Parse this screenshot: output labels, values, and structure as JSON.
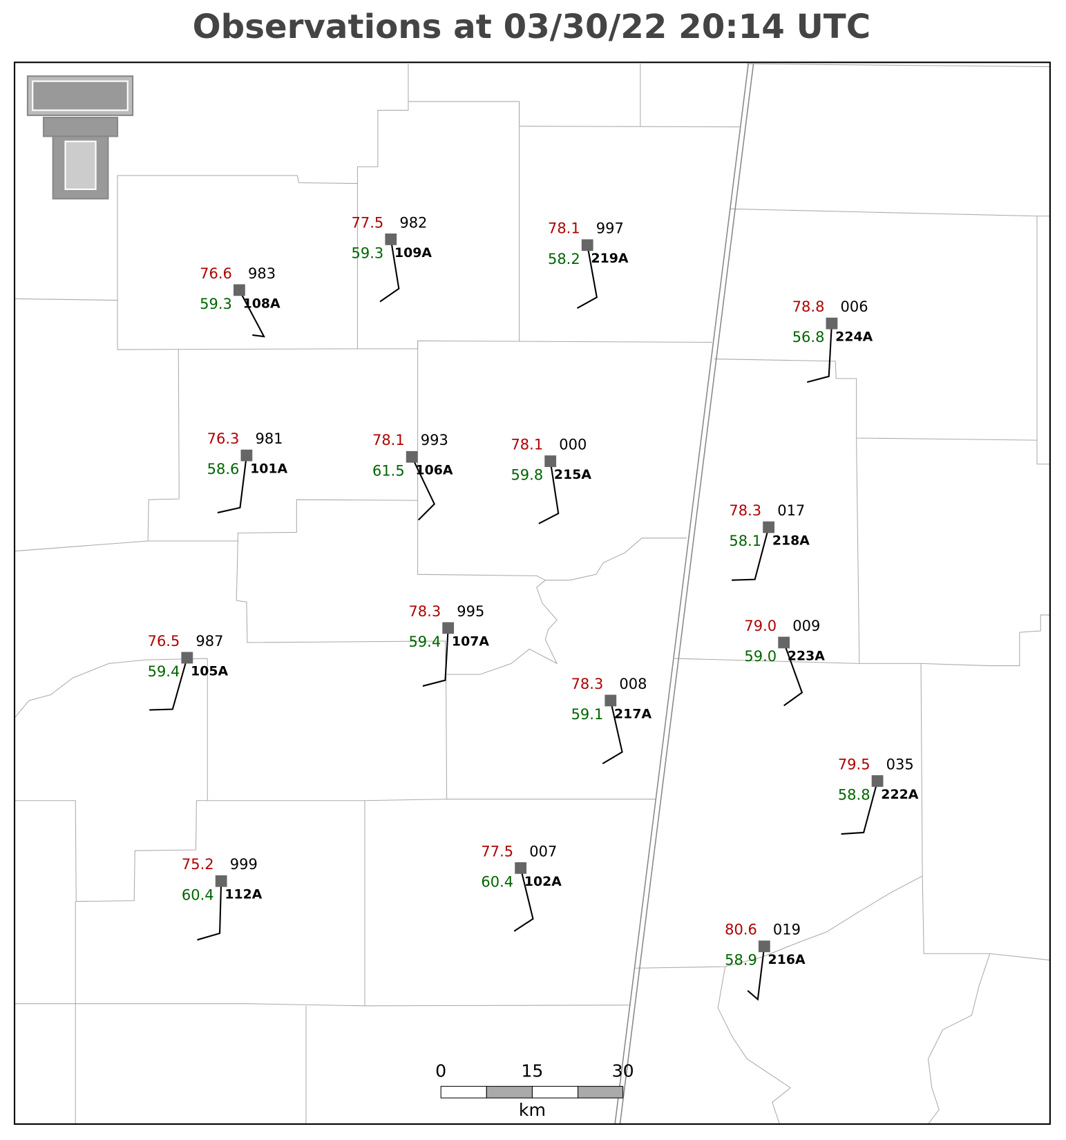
{
  "title": "Observations at 03/30/22 20:14 UTC",
  "stations": [
    {
      "id": "108A",
      "temperature": "76.6",
      "dewpoint": "59.3",
      "pressure": "983"
    },
    {
      "id": "109A",
      "temperature": "77.5",
      "dewpoint": "59.3",
      "pressure": "982"
    },
    {
      "id": "219A",
      "temperature": "78.1",
      "dewpoint": "58.2",
      "pressure": "997"
    },
    {
      "id": "224A",
      "temperature": "78.8",
      "dewpoint": "56.8",
      "pressure": "006"
    },
    {
      "id": "101A",
      "temperature": "76.3",
      "dewpoint": "58.6",
      "pressure": "981"
    },
    {
      "id": "106A",
      "temperature": "78.1",
      "dewpoint": "61.5",
      "pressure": "993"
    },
    {
      "id": "215A",
      "temperature": "78.1",
      "dewpoint": "59.8",
      "pressure": "000"
    },
    {
      "id": "218A",
      "temperature": "78.3",
      "dewpoint": "58.1",
      "pressure": "017"
    },
    {
      "id": "223A",
      "temperature": "79.0",
      "dewpoint": "59.0",
      "pressure": "009"
    },
    {
      "id": "107A",
      "temperature": "78.3",
      "dewpoint": "59.4",
      "pressure": "995"
    },
    {
      "id": "105A",
      "temperature": "76.5",
      "dewpoint": "59.4",
      "pressure": "987"
    },
    {
      "id": "217A",
      "temperature": "78.3",
      "dewpoint": "59.1",
      "pressure": "008"
    },
    {
      "id": "222A",
      "temperature": "79.5",
      "dewpoint": "58.8",
      "pressure": "035"
    },
    {
      "id": "112A",
      "temperature": "75.2",
      "dewpoint": "60.4",
      "pressure": "999"
    },
    {
      "id": "102A",
      "temperature": "77.5",
      "dewpoint": "60.4",
      "pressure": "007"
    },
    {
      "id": "216A",
      "temperature": "80.6",
      "dewpoint": "58.9",
      "pressure": "019"
    }
  ],
  "scale_bar": {
    "labels": [
      "0",
      "15",
      "30"
    ],
    "unit": "km"
  }
}
